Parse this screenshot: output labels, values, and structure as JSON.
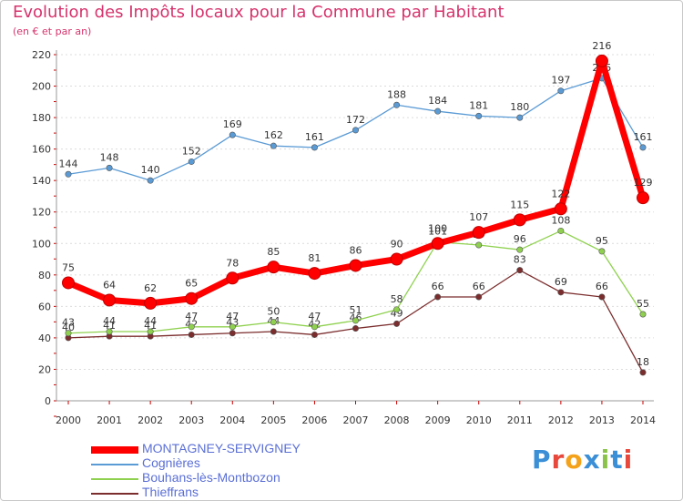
{
  "title": "Evolution des Impôts locaux pour la Commune par Habitant",
  "subtitle": "(en € et par an)",
  "logo": "Proxiti",
  "chart_data": {
    "type": "line",
    "title": "Evolution des Impôts locaux pour la Commune par Habitant",
    "subtitle": "(en € et par an)",
    "xlabel": "",
    "ylabel": "",
    "ylim": [
      0,
      220
    ],
    "y_ticks": [
      0,
      20,
      40,
      60,
      80,
      100,
      120,
      140,
      160,
      180,
      200,
      220
    ],
    "grid": true,
    "categories": [
      "2000",
      "2001",
      "2002",
      "2003",
      "2004",
      "2005",
      "2006",
      "2007",
      "2008",
      "2009",
      "2010",
      "2011",
      "2012",
      "2013",
      "2014"
    ],
    "series": [
      {
        "name": "MONTAGNEY-SERVIGNEY",
        "color": "#ff0000",
        "values": [
          75,
          64,
          62,
          65,
          78,
          85,
          81,
          86,
          90,
          100,
          107,
          115,
          122,
          216,
          129
        ]
      },
      {
        "name": "Cognières",
        "color": "#5b9bd5",
        "values": [
          144,
          148,
          140,
          152,
          169,
          162,
          161,
          172,
          188,
          184,
          181,
          180,
          197,
          205,
          161
        ]
      },
      {
        "name": "Bouhans-lès-Montbozon",
        "color": "#8fd14f",
        "values": [
          43,
          44,
          44,
          47,
          47,
          50,
          47,
          51,
          58,
          101,
          99,
          96,
          108,
          95,
          55
        ]
      },
      {
        "name": "Thieffrans",
        "color": "#7b2c2c",
        "values": [
          40,
          41,
          41,
          42,
          43,
          44,
          42,
          46,
          49,
          66,
          66,
          83,
          69,
          66,
          18
        ]
      }
    ],
    "legend_position": "bottom-left"
  }
}
